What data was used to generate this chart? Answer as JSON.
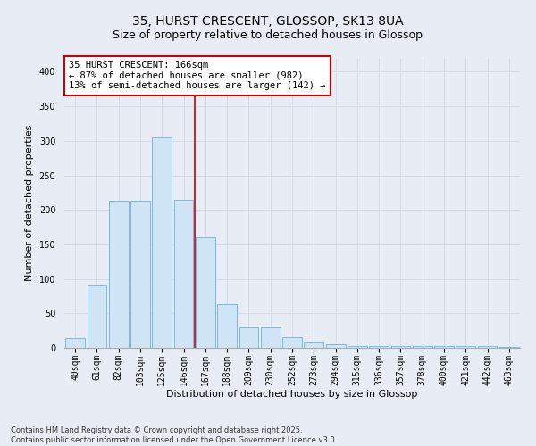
{
  "title_line1": "35, HURST CRESCENT, GLOSSOP, SK13 8UA",
  "title_line2": "Size of property relative to detached houses in Glossop",
  "xlabel": "Distribution of detached houses by size in Glossop",
  "ylabel": "Number of detached properties",
  "bar_labels": [
    "40sqm",
    "61sqm",
    "82sqm",
    "103sqm",
    "125sqm",
    "146sqm",
    "167sqm",
    "188sqm",
    "209sqm",
    "230sqm",
    "252sqm",
    "273sqm",
    "294sqm",
    "315sqm",
    "336sqm",
    "357sqm",
    "378sqm",
    "400sqm",
    "421sqm",
    "442sqm",
    "463sqm"
  ],
  "bar_values": [
    14,
    90,
    213,
    213,
    305,
    215,
    160,
    63,
    30,
    30,
    15,
    9,
    5,
    2,
    3,
    2,
    3,
    3,
    3,
    2,
    1
  ],
  "bar_color": "#cfe4f5",
  "bar_edge_color": "#7ab8e8",
  "property_line_x": 6.0,
  "annotation_text": "35 HURST CRESCENT: 166sqm\n← 87% of detached houses are smaller (982)\n13% of semi-detached houses are larger (142) →",
  "annotation_box_color": "#ffffff",
  "annotation_box_edge": "#cc0000",
  "vline_color": "#cc0000",
  "ylim": [
    0,
    420
  ],
  "yticks": [
    0,
    50,
    100,
    150,
    200,
    250,
    300,
    350,
    400
  ],
  "grid_color": "#d0d8e4",
  "bg_color": "#e8edf5",
  "footnote": "Contains HM Land Registry data © Crown copyright and database right 2025.\nContains public sector information licensed under the Open Government Licence v3.0.",
  "title_fontsize": 10,
  "subtitle_fontsize": 9,
  "axis_label_fontsize": 8,
  "tick_fontsize": 7,
  "annotation_fontsize": 7.5
}
